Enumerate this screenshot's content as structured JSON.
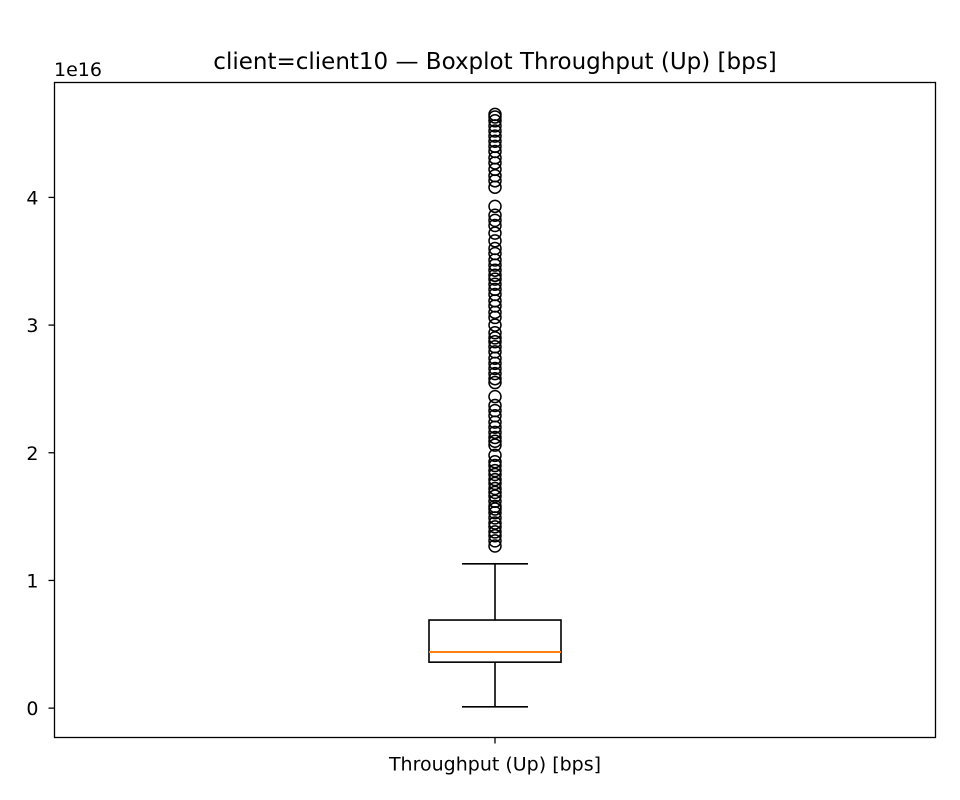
{
  "chart_data": {
    "type": "boxplot",
    "title": "client=client10 — Boxplot Throughput (Up) [bps]",
    "categories": [
      "Throughput (Up) [bps]"
    ],
    "y_offset_label": "1e16",
    "y_scale_factor": 1e+16,
    "ylim": [
      -0.23,
      4.9
    ],
    "y_ticks": [
      0,
      1,
      2,
      3,
      4
    ],
    "y_tick_labels": [
      "0",
      "1",
      "2",
      "3",
      "4"
    ],
    "grid": false,
    "box": {
      "whisker_low": 0.01,
      "q1": 0.36,
      "median": 0.44,
      "q3": 0.69,
      "whisker_high": 1.13
    },
    "outliers": [
      1.27,
      1.31,
      1.35,
      1.38,
      1.42,
      1.45,
      1.49,
      1.53,
      1.56,
      1.58,
      1.62,
      1.66,
      1.69,
      1.72,
      1.76,
      1.79,
      1.83,
      1.86,
      1.9,
      1.93,
      1.98,
      2.06,
      2.09,
      2.12,
      2.16,
      2.2,
      2.24,
      2.29,
      2.33,
      2.37,
      2.44,
      2.55,
      2.58,
      2.62,
      2.66,
      2.7,
      2.74,
      2.79,
      2.83,
      2.87,
      2.9,
      2.94,
      3.0,
      3.06,
      3.1,
      3.15,
      3.19,
      3.24,
      3.28,
      3.32,
      3.36,
      3.39,
      3.43,
      3.47,
      3.51,
      3.56,
      3.6,
      3.66,
      3.72,
      3.78,
      3.82,
      3.86,
      3.93,
      4.08,
      4.13,
      4.17,
      4.22,
      4.27,
      4.31,
      4.36,
      4.4,
      4.44,
      4.48,
      4.52,
      4.56,
      4.6,
      4.63,
      4.65
    ],
    "colors": {
      "box": "#000000",
      "median": "#ff7f0e",
      "whisker": "#000000",
      "outlier_edge": "#000000",
      "axes": "#000000"
    }
  }
}
